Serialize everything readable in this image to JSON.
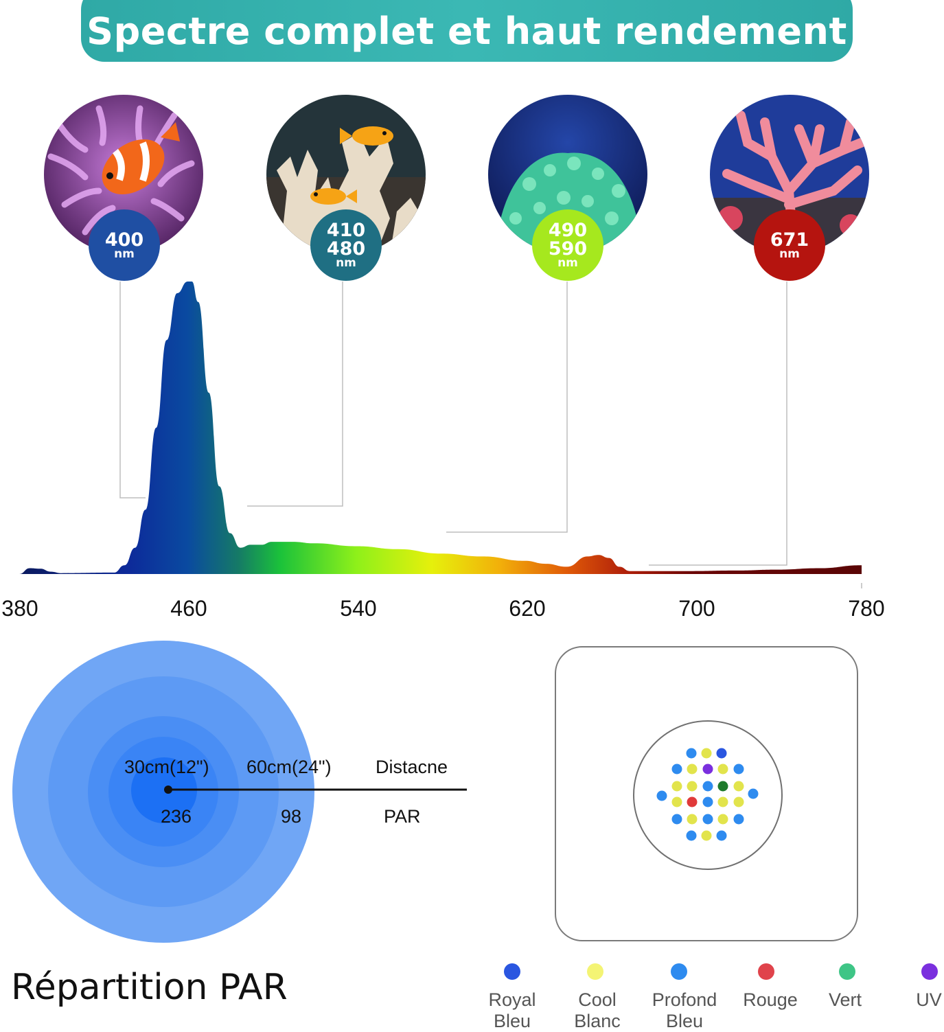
{
  "header": {
    "title": "Spectre complet et haut rendement"
  },
  "badges": [
    {
      "line1": "400",
      "line2": "",
      "unit": "nm",
      "color": "#1f4fa3"
    },
    {
      "line1": "410",
      "line2": "480",
      "unit": "nm",
      "color": "#1f6f83"
    },
    {
      "line1": "490",
      "line2": "590",
      "unit": "nm",
      "color": "#a6e81e"
    },
    {
      "line1": "671",
      "line2": "",
      "unit": "nm",
      "color": "#b5140f"
    }
  ],
  "photos": [
    {
      "icon": "clownfish-anemone-icon"
    },
    {
      "icon": "coral-fish-icon"
    },
    {
      "icon": "green-coral-icon"
    },
    {
      "icon": "pink-coral-icon"
    }
  ],
  "chart_data": {
    "type": "area",
    "title": "",
    "xlabel": "",
    "ylabel": "",
    "xlim": [
      380,
      780
    ],
    "xticks": [
      "380",
      "460",
      "540",
      "620",
      "700",
      "780"
    ],
    "y_range": [
      0,
      1
    ],
    "grid": false,
    "series": [
      {
        "x": [
          380,
          385,
          390,
          395,
          400,
          425,
          430,
          435,
          440,
          445,
          450,
          455,
          460,
          462,
          465,
          470,
          475,
          480,
          485,
          490,
          495,
          500,
          510,
          520,
          540,
          560,
          580,
          600,
          620,
          630,
          640,
          650,
          655,
          660,
          665,
          670,
          680,
          700,
          720,
          740,
          760,
          780
        ],
        "y": [
          0.0,
          0.02,
          0.018,
          0.008,
          0.003,
          0.005,
          0.03,
          0.09,
          0.22,
          0.5,
          0.8,
          0.96,
          1.0,
          1.0,
          0.93,
          0.62,
          0.3,
          0.14,
          0.09,
          0.1,
          0.1,
          0.11,
          0.11,
          0.105,
          0.095,
          0.085,
          0.07,
          0.06,
          0.045,
          0.035,
          0.025,
          0.06,
          0.065,
          0.055,
          0.025,
          0.01,
          0.01,
          0.01,
          0.012,
          0.015,
          0.02,
          0.03
        ]
      }
    ],
    "markers": [
      400,
      445,
      525,
      671
    ]
  },
  "par": {
    "distance_1": "30cm(12\")",
    "distance_2": "60cm(24\")",
    "distance_label": "Distacne",
    "par_1": "236",
    "par_2": "98",
    "par_label": "PAR",
    "title": "Répartition PAR",
    "colors": [
      "#70a6f5",
      "#5d9af4",
      "#4a8ef4",
      "#3a84f5",
      "#1c70f4"
    ]
  },
  "legend": [
    {
      "line1": "Royal",
      "line2": "Bleu",
      "color": "#2a56e0"
    },
    {
      "line1": "Cool",
      "line2": "Blanc",
      "color": "#f4f474"
    },
    {
      "line1": "Profond",
      "line2": "Bleu",
      "color": "#2e8bef"
    },
    {
      "line1": "Rouge",
      "line2": "",
      "color": "#e0434b"
    },
    {
      "line1": "Vert",
      "line2": "",
      "color": "#3ec586"
    },
    {
      "line1": "UV",
      "line2": "",
      "color": "#7a2fde"
    }
  ],
  "led_colors": {
    "royal": "#2a56e0",
    "cool": "#e2e44c",
    "deep": "#2e8bef",
    "red": "#e03a3a",
    "green": "#1e7a2c",
    "uv": "#7a2fde"
  }
}
